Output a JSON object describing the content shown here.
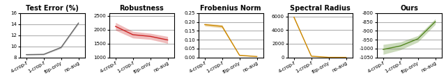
{
  "chart_data": [
    {
      "type": "line",
      "title": "Test Error (%)",
      "categories": [
        "4-crop-f",
        "1-crop-f",
        "flip-only",
        "no-aug"
      ],
      "values": [
        8.5,
        8.55,
        9.8,
        14.2
      ],
      "std": [
        0.12,
        0.12,
        0.18,
        0.2
      ],
      "color": "#666666",
      "ylim": [
        8,
        16
      ],
      "yticks": [
        8,
        10,
        12,
        14,
        16
      ],
      "grid": true
    },
    {
      "type": "line",
      "title": "Robustness",
      "categories": [
        "4-crop-f",
        "1-crop-f",
        "flip-only",
        "no-aug"
      ],
      "values": [
        2120,
        1820,
        1760,
        1630
      ],
      "std": [
        140,
        120,
        110,
        125
      ],
      "color": "#cc2222",
      "ylim": [
        1000,
        2600
      ],
      "yticks": [
        1000,
        1500,
        2000,
        2500
      ],
      "grid": true
    },
    {
      "type": "line",
      "title": "Frobenius Norm",
      "categories": [
        "4-crop-f",
        "1-crop-f",
        "flip-only",
        "no-aug"
      ],
      "values": [
        0.185,
        0.175,
        0.012,
        0.005
      ],
      "std": [
        0.008,
        0.009,
        0.003,
        0.002
      ],
      "color": "#cc8800",
      "ylim": [
        0.0,
        0.25
      ],
      "yticks": [
        {
          "value": 0.0,
          "label": "0.00"
        },
        0.05,
        {
          "value": 0.1,
          "label": "0.10"
        },
        0.15,
        {
          "value": 0.2,
          "label": "0.20"
        },
        0.25
      ],
      "grid": true
    },
    {
      "type": "line",
      "title": "Spectral Radius",
      "categories": [
        "4-crop-f",
        "1-crop-f",
        "flip-only",
        "no-aug"
      ],
      "values": [
        5900,
        180,
        8,
        4
      ],
      "std": [
        180,
        45,
        4,
        2
      ],
      "color": "#cc8800",
      "ylim": [
        0,
        6500
      ],
      "yticks": [
        0,
        2000,
        4000,
        6000
      ],
      "grid": true
    },
    {
      "type": "line",
      "title": "Ours",
      "categories": [
        "4-crop-f",
        "1-crop-f",
        "flip-only",
        "no-aug"
      ],
      "values": [
        -1005,
        -985,
        -945,
        -848
      ],
      "std": [
        28,
        22,
        18,
        16
      ],
      "color": "#558822",
      "ylim": [
        -1050,
        -800
      ],
      "yticks": [
        -1050,
        -1000,
        -950,
        -900,
        -850,
        -800
      ],
      "grid": true
    }
  ]
}
